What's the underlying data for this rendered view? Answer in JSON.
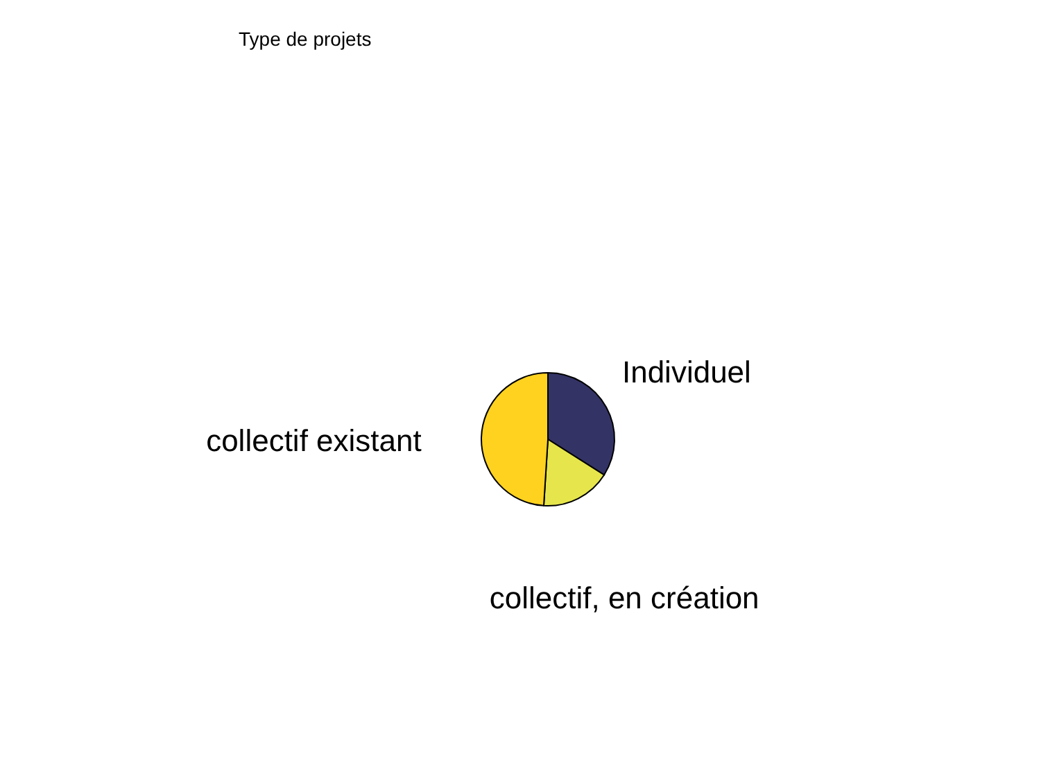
{
  "chart_data": {
    "type": "pie",
    "title": "Type de projets ",
    "categories": [
      "Individuel",
      "collectif, en création",
      "collectif existant"
    ],
    "values": [
      34,
      17,
      49
    ],
    "colors": [
      "#333366",
      "#e6e64c",
      "#ffd21f"
    ]
  }
}
